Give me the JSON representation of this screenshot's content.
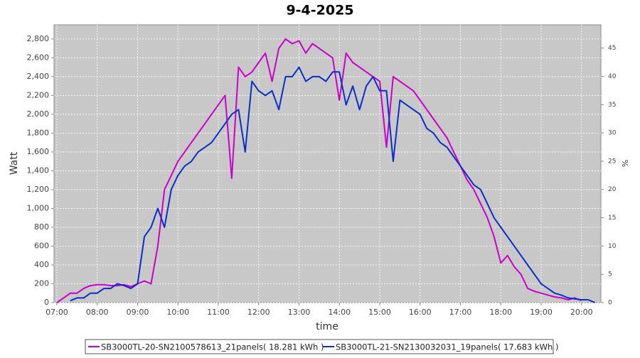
{
  "chart_data": {
    "type": "line",
    "title": "9-4-2025",
    "x_label": "time",
    "y_label": "Watt",
    "y2_label": "%",
    "x": [
      7,
      7.167,
      7.333,
      7.5,
      7.667,
      7.833,
      8,
      8.167,
      8.333,
      8.5,
      8.667,
      8.833,
      9,
      9.167,
      9.333,
      9.5,
      9.667,
      9.833,
      10,
      10.167,
      10.333,
      10.5,
      10.667,
      10.833,
      11,
      11.167,
      11.333,
      11.5,
      11.667,
      11.833,
      12,
      12.167,
      12.333,
      12.5,
      12.667,
      12.833,
      13,
      13.167,
      13.333,
      13.5,
      13.667,
      13.833,
      14,
      14.167,
      14.333,
      14.5,
      14.667,
      14.833,
      15,
      15.167,
      15.333,
      15.5,
      15.667,
      15.833,
      16,
      16.167,
      16.333,
      16.5,
      16.667,
      16.833,
      17,
      17.167,
      17.333,
      17.5,
      17.667,
      17.833,
      18,
      18.167,
      18.333,
      18.5,
      18.667,
      18.833,
      19,
      19.167,
      19.333,
      19.5,
      19.667,
      19.833,
      20,
      20.167,
      20.333
    ],
    "series": [
      {
        "name": "SB3000TL-20-SN2100578613_21panels( 18.281 kWh )",
        "color": "#cc00cc",
        "values": [
          0,
          50,
          100,
          100,
          150,
          180,
          190,
          190,
          180,
          180,
          190,
          170,
          200,
          230,
          200,
          600,
          1200,
          1350,
          1500,
          1600,
          1700,
          1800,
          1900,
          2000,
          2100,
          2200,
          1320,
          2500,
          2400,
          2450,
          2550,
          2650,
          2350,
          2700,
          2800,
          2750,
          2780,
          2650,
          2750,
          2700,
          2650,
          2600,
          2150,
          2650,
          2550,
          2500,
          2450,
          2400,
          2350,
          1650,
          2400,
          2350,
          2300,
          2250,
          2150,
          2050,
          1950,
          1850,
          1750,
          1600,
          1450,
          1300,
          1200,
          1050,
          900,
          700,
          420,
          500,
          380,
          300,
          150,
          120,
          100,
          80,
          60,
          50,
          30,
          50,
          20,
          null,
          null
        ]
      },
      {
        "name": "SB3000TL-21-SN2130032031_19panels( 17.683 kWh )",
        "color": "#0a2fc8",
        "values": [
          null,
          null,
          20,
          50,
          50,
          100,
          100,
          150,
          150,
          200,
          180,
          150,
          200,
          700,
          800,
          1000,
          800,
          1200,
          1350,
          1450,
          1500,
          1600,
          1650,
          1700,
          1800,
          1900,
          2000,
          2050,
          1600,
          2350,
          2250,
          2200,
          2250,
          2050,
          2400,
          2400,
          2500,
          2350,
          2400,
          2400,
          2350,
          2450,
          2450,
          2100,
          2300,
          2050,
          2300,
          2400,
          2250,
          2250,
          1500,
          2150,
          2100,
          2050,
          2000,
          1850,
          1800,
          1700,
          1650,
          1550,
          1450,
          1350,
          1250,
          1200,
          1050,
          900,
          800,
          700,
          600,
          500,
          400,
          300,
          200,
          150,
          100,
          80,
          50,
          40,
          30,
          30,
          0
        ]
      }
    ],
    "xlim": [
      6.93,
      20.48
    ],
    "xticks": [
      {
        "value": 7,
        "label": "07:00"
      },
      {
        "value": 8,
        "label": "08:00"
      },
      {
        "value": 9,
        "label": "09:00"
      },
      {
        "value": 10,
        "label": "10:00"
      },
      {
        "value": 11,
        "label": "11:00"
      },
      {
        "value": 12,
        "label": "12:00"
      },
      {
        "value": 13,
        "label": "13:00"
      },
      {
        "value": 14,
        "label": "14:00"
      },
      {
        "value": 15,
        "label": "15:00"
      },
      {
        "value": 16,
        "label": "16:00"
      },
      {
        "value": 17,
        "label": "17:00"
      },
      {
        "value": 18,
        "label": "18:00"
      },
      {
        "value": 19,
        "label": "19:00"
      },
      {
        "value": 20,
        "label": "20:00"
      }
    ],
    "ylim": [
      0,
      2950
    ],
    "yticks": [
      0,
      200,
      400,
      600,
      800,
      {
        "value": 1000,
        "label": "1,000"
      },
      {
        "value": 1200,
        "label": "1,200"
      },
      {
        "value": 1400,
        "label": "1,400"
      },
      {
        "value": 1600,
        "label": "1,600"
      },
      {
        "value": 1800,
        "label": "1,800"
      },
      {
        "value": 2000,
        "label": "2,000"
      },
      {
        "value": 2200,
        "label": "2,200"
      },
      {
        "value": 2400,
        "label": "2,400"
      },
      {
        "value": 2600,
        "label": "2,600"
      },
      {
        "value": 2800,
        "label": "2,800"
      }
    ],
    "y2lim": [
      0,
      49.1
    ],
    "y2ticks": [
      0,
      5,
      10,
      15,
      20,
      25,
      30,
      35,
      40,
      45
    ],
    "grid": true
  }
}
